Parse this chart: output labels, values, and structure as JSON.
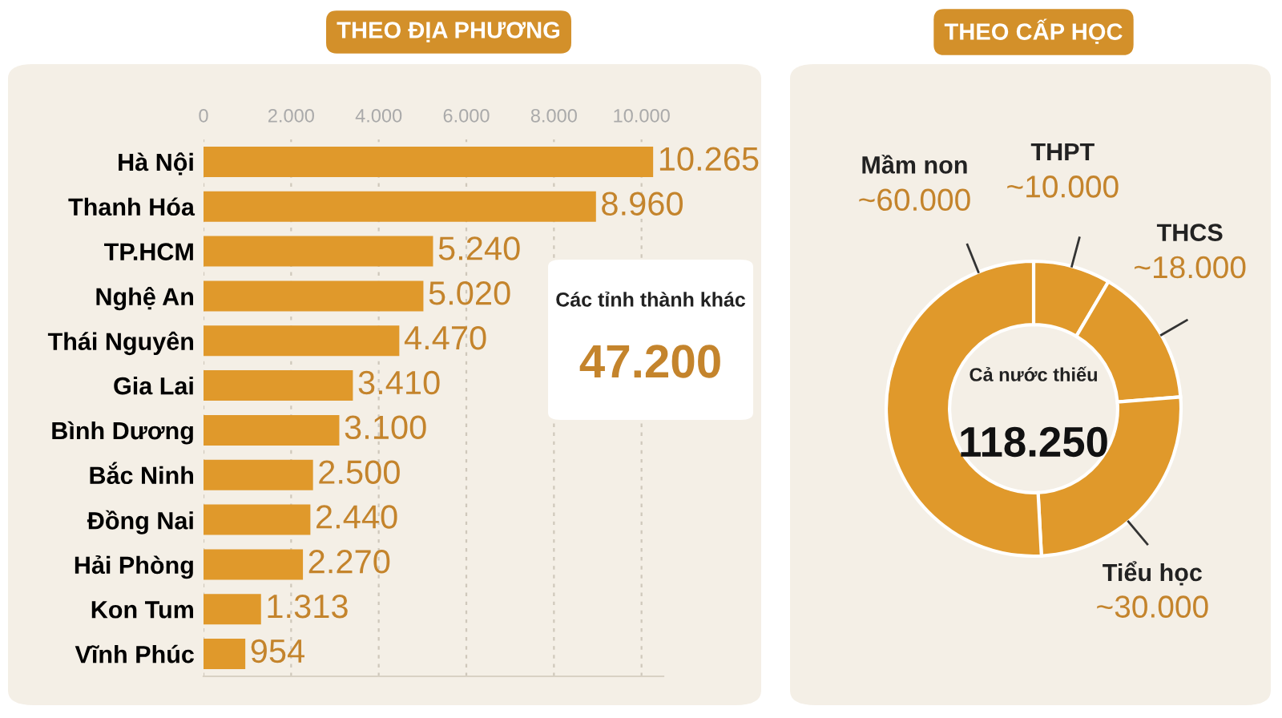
{
  "chart_data": [
    {
      "type": "bar",
      "orientation": "horizontal",
      "title": "THEO ĐỊA PHƯƠNG",
      "categories": [
        "Hà Nội",
        "Thanh Hóa",
        "TP.HCM",
        "Nghệ An",
        "Thái Nguyên",
        "Gia Lai",
        "Bình Dương",
        "Bắc Ninh",
        "Đồng Nai",
        "Hải Phòng",
        "Kon Tum",
        "Vĩnh Phúc"
      ],
      "values": [
        10265,
        8960,
        5240,
        5020,
        4470,
        3410,
        3100,
        2500,
        2440,
        2270,
        1313,
        954
      ],
      "value_labels": [
        "10.265",
        "8.960",
        "5.240",
        "5.020",
        "4.470",
        "3.410",
        "3.100",
        "2.500",
        "2.440",
        "2.270",
        "1.313",
        "954"
      ],
      "color": "#e0992b",
      "xlim": [
        0,
        10500
      ],
      "xticks": [
        0,
        {
          "value": 2000,
          "label": "2.000"
        },
        {
          "value": 4000,
          "label": "4.000"
        },
        {
          "value": 6000,
          "label": "6.000"
        },
        {
          "value": 8000,
          "label": "8.000"
        },
        {
          "value": 10000,
          "label": "10.000"
        }
      ],
      "grid": "x",
      "annotations": [
        "Các tỉnh thành khác",
        "47.200"
      ]
    },
    {
      "type": "donut",
      "title": "THEO CẤP HỌC",
      "categories": [
        "THPT",
        "THCS",
        "Tiểu học",
        "Mầm non"
      ],
      "values": [
        10000,
        18000,
        30000,
        60000
      ],
      "value_labels": [
        "~10.000",
        "~18.000",
        "~30.000",
        "~60.000"
      ],
      "colors": [
        "#e0992b",
        "#e0992b",
        "#e0992b",
        "#e0992b"
      ],
      "annotations": [
        "Cả nước thiếu",
        "118.250"
      ]
    }
  ]
}
